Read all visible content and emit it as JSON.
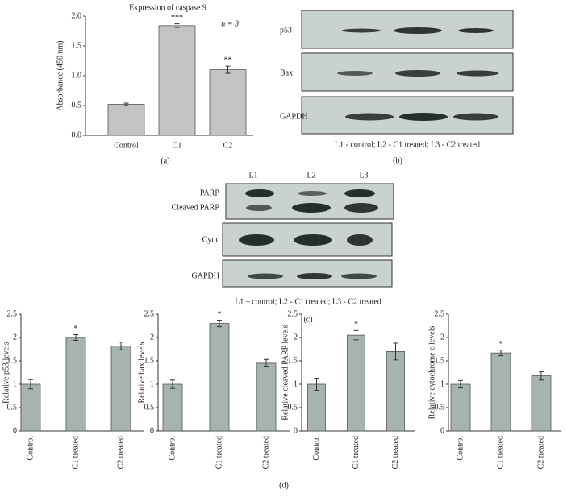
{
  "chart_data": [
    {
      "type": "bar",
      "title": "Expression of caspase 9",
      "ylabel": "Absorbance (450 nm)",
      "note": "n = 3",
      "panel_label": "(a)",
      "categories": [
        "Control",
        "C1",
        "C2"
      ],
      "values": [
        0.52,
        1.84,
        1.1
      ],
      "errors": [
        0.02,
        0.03,
        0.06
      ],
      "significance": [
        null,
        "***",
        "**"
      ],
      "color": "#c4c4c4",
      "ylim": [
        0,
        2
      ],
      "yticks": [
        {
          "value": 0,
          "label": "0.0"
        },
        0.5,
        {
          "value": 1,
          "label": "1.0"
        },
        1.5,
        {
          "value": 2,
          "label": "2.0"
        }
      ]
    },
    {
      "type": "bar",
      "ylabel": "Relative p53 levels",
      "categories": [
        "Control",
        "C1 treated",
        "C2 treated"
      ],
      "values": [
        1.0,
        2.0,
        1.82
      ],
      "errors": [
        0.1,
        0.06,
        0.08
      ],
      "significance": [
        null,
        "*",
        null
      ],
      "color": "#a7b3ae",
      "ylim": [
        0,
        2.5
      ],
      "yticks": [
        0,
        0.5,
        1,
        1.5,
        2,
        2.5
      ]
    },
    {
      "type": "bar",
      "ylabel": "Relative bax levels",
      "categories": [
        "Control",
        "C1 treated",
        "C2 treated"
      ],
      "values": [
        1.0,
        2.3,
        1.45
      ],
      "errors": [
        0.09,
        0.07,
        0.08
      ],
      "significance": [
        null,
        "*",
        null
      ],
      "color": "#a7b3ae",
      "ylim": [
        0,
        2.5
      ],
      "yticks": [
        0,
        0.5,
        1,
        1.5,
        2,
        2.5
      ]
    },
    {
      "type": "bar",
      "ylabel": "Relative cleaved PARP levels",
      "categories": [
        "Control",
        "C1 treated",
        "C2 treated"
      ],
      "values": [
        1.0,
        2.05,
        1.7
      ],
      "errors": [
        0.13,
        0.1,
        0.18
      ],
      "significance": [
        null,
        "*",
        null
      ],
      "color": "#a7b3ae",
      "ylim": [
        0,
        2.5
      ],
      "yticks": [
        0,
        0.5,
        1,
        1.5,
        2,
        2.5
      ]
    },
    {
      "type": "bar",
      "ylabel": "Relative cytochrome c levels",
      "categories": [
        "Control",
        "C1 treated",
        "C2 treated"
      ],
      "values": [
        1.0,
        1.67,
        1.18
      ],
      "errors": [
        0.08,
        0.06,
        0.09
      ],
      "significance": [
        null,
        "*",
        null
      ],
      "color": "#a7b3ae",
      "ylim": [
        0,
        2.5
      ],
      "yticks": [
        0,
        0.5,
        1,
        1.5,
        2,
        2.5
      ]
    }
  ],
  "blot_b": {
    "rows": [
      "p53",
      "Bax",
      "GAPDH"
    ],
    "caption": "L1 - control; L2 - C1 treated; L3 - C2 treated",
    "panel_label": "(b)"
  },
  "blot_c": {
    "lanes": [
      "L1",
      "L2",
      "L3"
    ],
    "rows": [
      "PARP",
      "Cleaved PARP",
      "Cyt c",
      "GAPDH"
    ],
    "caption": "L1 – control; L2 - C1 treated; L3 - C2 treated",
    "panel_label": "(c)"
  },
  "panel_d_label": "(d)"
}
